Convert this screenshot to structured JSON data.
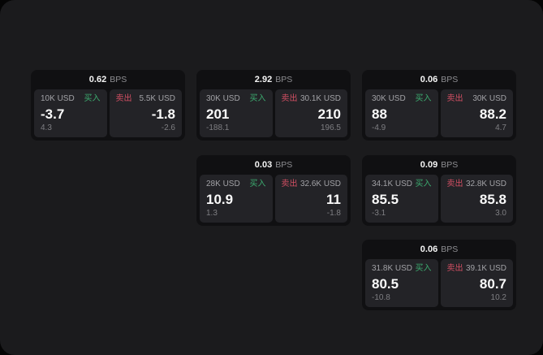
{
  "labels": {
    "bps": "BPS",
    "buy": "买入",
    "sell": "卖出"
  },
  "colors": {
    "buy": "#3cab6f",
    "sell": "#d24f63",
    "frame-bg": "#1b1b1d",
    "card-bg": "#101012",
    "panel-bg": "#232327"
  },
  "cards": [
    {
      "bps": "0.62",
      "buy": {
        "amount": "10K USD",
        "price": "-3.7",
        "delta": "4.3"
      },
      "sell": {
        "amount": "5.5K USD",
        "price": "-1.8",
        "delta": "-2.6"
      }
    },
    {
      "bps": "2.92",
      "buy": {
        "amount": "30K USD",
        "price": "201",
        "delta": "-188.1"
      },
      "sell": {
        "amount": "30.1K USD",
        "price": "210",
        "delta": "196.5"
      }
    },
    {
      "bps": "0.06",
      "buy": {
        "amount": "30K USD",
        "price": "88",
        "delta": "-4.9"
      },
      "sell": {
        "amount": "30K USD",
        "price": "88.2",
        "delta": "4.7"
      }
    },
    {
      "bps": "0.03",
      "buy": {
        "amount": "28K USD",
        "price": "10.9",
        "delta": "1.3"
      },
      "sell": {
        "amount": "32.6K USD",
        "price": "11",
        "delta": "-1.8"
      }
    },
    {
      "bps": "0.09",
      "buy": {
        "amount": "34.1K USD",
        "price": "85.5",
        "delta": "-3.1"
      },
      "sell": {
        "amount": "32.8K USD",
        "price": "85.8",
        "delta": "3.0"
      }
    },
    {
      "bps": "0.06",
      "buy": {
        "amount": "31.8K USD",
        "price": "80.5",
        "delta": "-10.8"
      },
      "sell": {
        "amount": "39.1K USD",
        "price": "80.7",
        "delta": "10.2"
      }
    }
  ]
}
